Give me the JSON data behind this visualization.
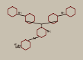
{
  "bg_color": "#c8c0b0",
  "line_color": "#150500",
  "ring_color": "#6b0a0a",
  "text_color": "#150500",
  "figw": 1.2,
  "figh": 0.87,
  "dpi": 100
}
